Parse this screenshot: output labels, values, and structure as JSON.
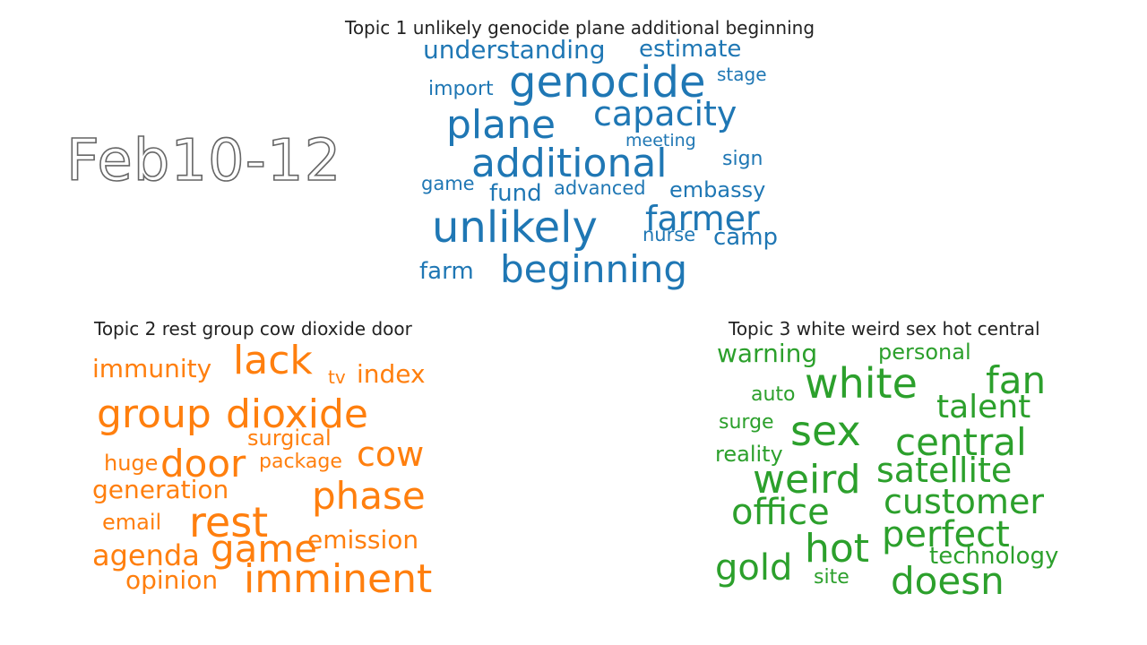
{
  "date_label": "Feb10-12",
  "topics": [
    {
      "title": "Topic 1 unlikely genocide plane additional beginning",
      "color": "#1f77b4",
      "words": [
        "understanding",
        "estimate",
        "genocide",
        "stage",
        "import",
        "plane",
        "capacity",
        "meeting",
        "additional",
        "sign",
        "game",
        "fund",
        "advanced",
        "embassy",
        "unlikely",
        "farmer",
        "nurse",
        "camp",
        "farm",
        "beginning"
      ]
    },
    {
      "title": "Topic 2 rest group cow dioxide door",
      "color": "#ff7f0e",
      "words": [
        "lack",
        "immunity",
        "tv",
        "index",
        "group",
        "dioxide",
        "surgical",
        "cow",
        "huge",
        "door",
        "package",
        "generation",
        "phase",
        "rest",
        "email",
        "game",
        "emission",
        "agenda",
        "imminent",
        "opinion"
      ]
    },
    {
      "title": "Topic 3 white weird sex hot central",
      "color": "#2ca02c",
      "words": [
        "warning",
        "personal",
        "white",
        "fan",
        "auto",
        "talent",
        "surge",
        "sex",
        "central",
        "reality",
        "satellite",
        "weird",
        "customer",
        "office",
        "perfect",
        "hot",
        "gold",
        "technology",
        "site",
        "doesn"
      ]
    }
  ]
}
